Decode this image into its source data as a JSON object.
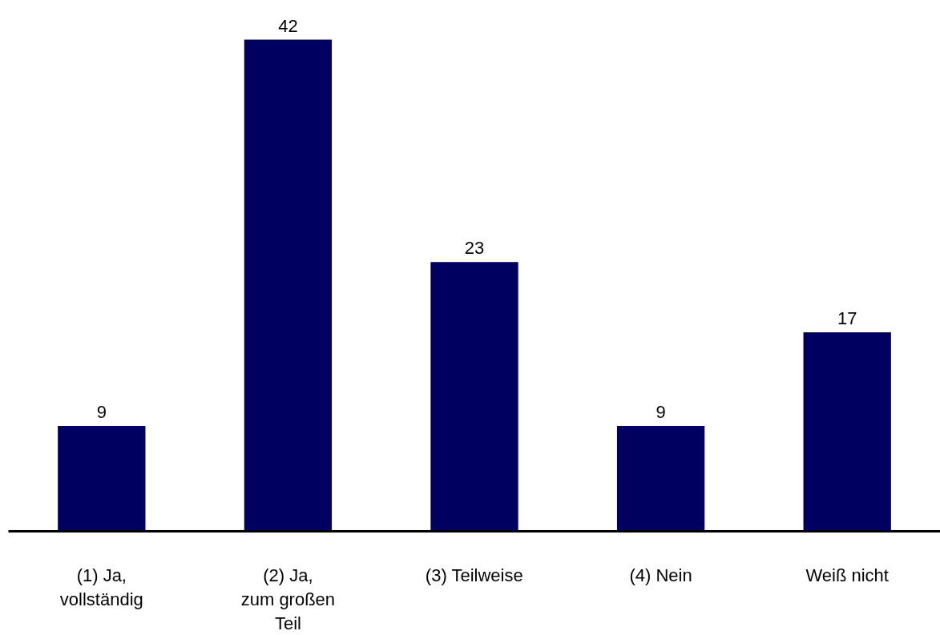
{
  "chart_data": {
    "type": "bar",
    "categories": [
      "(1) Ja,\nvollständig",
      "(2) Ja,\nzum großen\nTeil",
      "(3) Teilweise",
      "(4) Nein",
      "Weiß nicht"
    ],
    "values": [
      9,
      42,
      23,
      9,
      17
    ],
    "color": "#000060",
    "data_labels": true
  }
}
